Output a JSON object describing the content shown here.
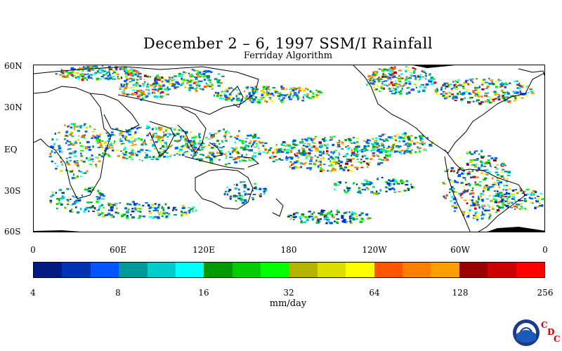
{
  "title": "December 2 – 6, 1997 SSM/I Rainfall",
  "subtitle": "Ferriday Algorithm",
  "lat_labels": [
    "60N",
    "30N",
    "EQ",
    "30S",
    "60S"
  ],
  "lon_labels": [
    "0",
    "60E",
    "120E",
    "180",
    "120W",
    "60W",
    "0"
  ],
  "colorbar": {
    "colors": [
      "#001a80",
      "#0033b3",
      "#0055ff",
      "#00999a",
      "#00cccc",
      "#00ffff",
      "#009900",
      "#00cc00",
      "#00ff00",
      "#b3b300",
      "#dddd00",
      "#ffff00",
      "#ff5500",
      "#ff8000",
      "#ffa000",
      "#990000",
      "#cc0000",
      "#ff0000"
    ],
    "tick_labels": [
      "4",
      "8",
      "16",
      "32",
      "64",
      "128",
      "256"
    ],
    "units": "mm/day"
  },
  "logo": {
    "name": "NOAA",
    "letters": [
      "C",
      "D",
      "C"
    ]
  }
}
